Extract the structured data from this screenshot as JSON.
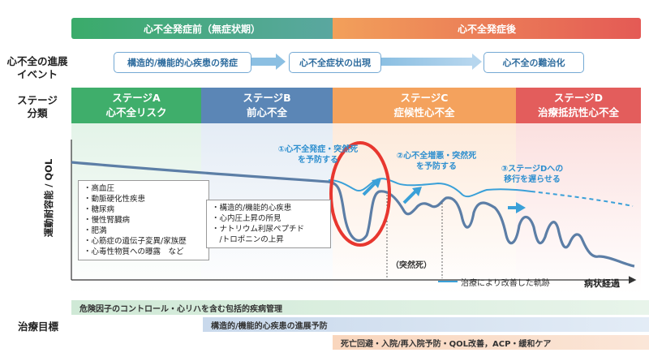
{
  "phases": {
    "pre": "心不全発症前（無症状期）",
    "post": "心不全発症後"
  },
  "row_labels": {
    "events": [
      "心不全の進展",
      "イベント"
    ],
    "stages": [
      "ステージ",
      "分類"
    ],
    "y_axis": "運動耐容能 / QOL",
    "goals": "治療目標"
  },
  "events": [
    "構造的/機能的心疾患の発症",
    "心不全症状の出現",
    "心不全の難治化"
  ],
  "stages": [
    {
      "title": "ステージA",
      "subtitle": "心不全リスク"
    },
    {
      "title": "ステージB",
      "subtitle": "前心不全"
    },
    {
      "title": "ステージC",
      "subtitle": "症候性心不全"
    },
    {
      "title": "ステージD",
      "subtitle": "治療抵抗性心不全"
    }
  ],
  "stage_colors": [
    "#3fae6b",
    "#5b86b6",
    "#f4a25d",
    "#e35d5c"
  ],
  "annotations": [
    [
      "①心不全発症・突然死",
      "を予防する"
    ],
    [
      "②心不全増悪・突然死",
      "を予防する"
    ],
    [
      "③ステージDへの",
      "移行を遅らせる"
    ]
  ],
  "risk_list": [
    "・高血圧",
    "・動脈硬化性疾患",
    "・糖尿病",
    "・慢性腎臓病",
    "・肥満",
    "・心筋症の遺伝子変異/家族歴",
    "・心毒性物質への曝露　など"
  ],
  "pre_hf_list": [
    "・構造的/機能的心疾患",
    "・心内圧上昇の所見",
    "・ナトリウム利尿ペプチド",
    "　/トロポニンの上昇"
  ],
  "sudden_death_label": "（突然死）",
  "legend_label": "治療により改善した軌跡",
  "x_axis_label": "病状経過",
  "goals": [
    "危険因子のコントロール・心リハを含む包括的疾病管理",
    "構造的/機能的心疾患の進展予防",
    "死亡回避・入院/再入院予防・QOL改善，ACP・緩和ケア"
  ],
  "colors": {
    "main_curve": "#5c7ea6",
    "improved_curve": "#3aa0d8",
    "highlight_circle": "#e8372f"
  }
}
